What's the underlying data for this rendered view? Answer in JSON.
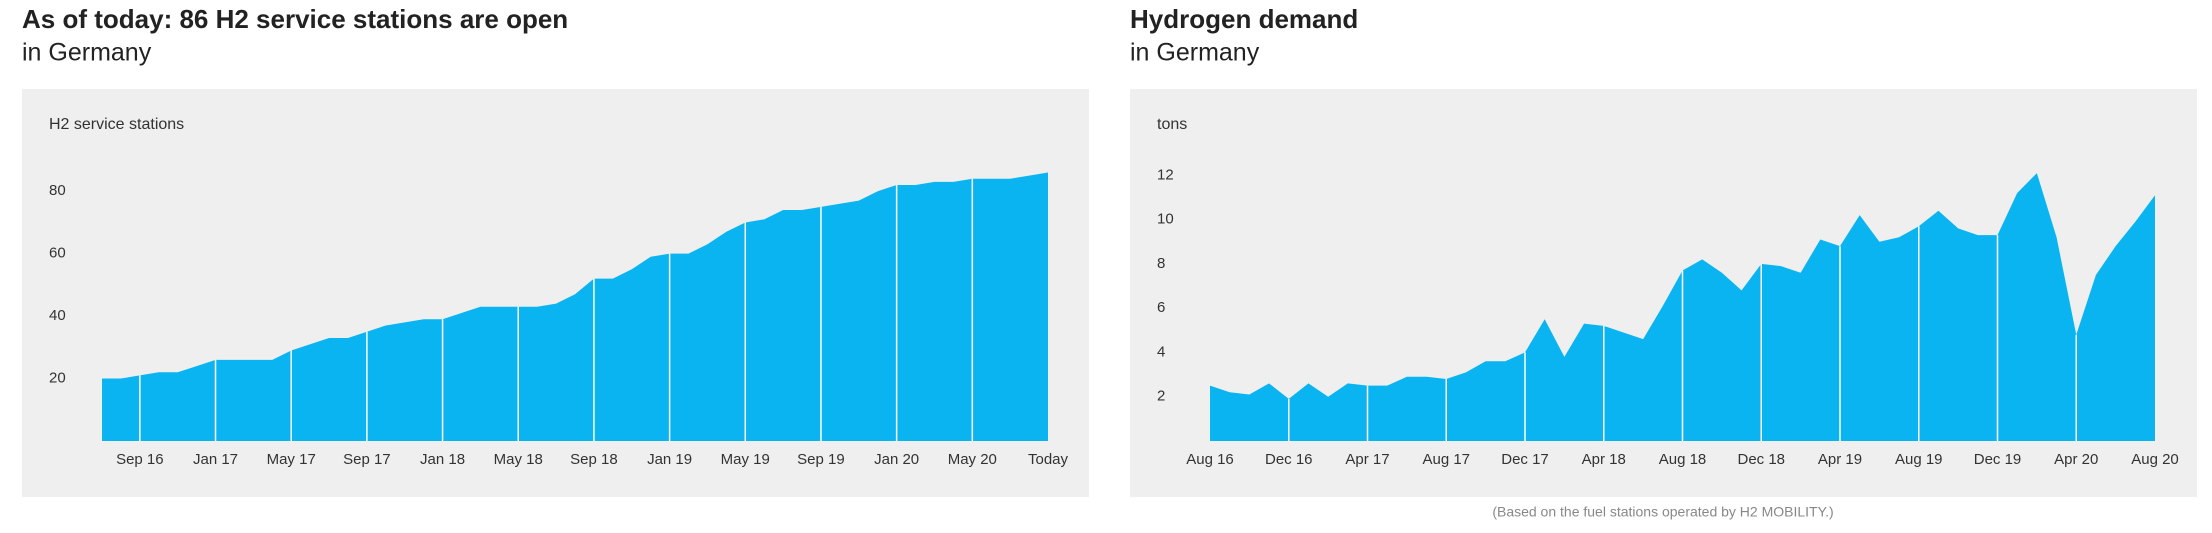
{
  "chart_data": [
    {
      "type": "area",
      "title": "As of today: 86 H2 service stations are open",
      "subtitle": "in Germany",
      "y_label": "H2 service stations",
      "color": "#0ab4f0",
      "categories": [
        null,
        null,
        "Sep 16",
        null,
        null,
        null,
        "Jan 17",
        null,
        null,
        null,
        "May 17",
        null,
        null,
        null,
        "Sep 17",
        null,
        null,
        null,
        "Jan 18",
        null,
        null,
        null,
        "May 18",
        null,
        null,
        null,
        "Sep 18",
        null,
        null,
        null,
        "Jan 19",
        null,
        null,
        null,
        "May 19",
        null,
        null,
        null,
        "Sep 19",
        null,
        null,
        null,
        "Jan 20",
        null,
        null,
        null,
        "May 20",
        null,
        null,
        null,
        "Today"
      ],
      "values": [
        20,
        20,
        21,
        22,
        22,
        24,
        26,
        26,
        26,
        26,
        29,
        31,
        33,
        33,
        35,
        37,
        38,
        39,
        39,
        41,
        43,
        43,
        43,
        43,
        44,
        47,
        52,
        52,
        55,
        59,
        60,
        60,
        63,
        67,
        70,
        71,
        74,
        74,
        75,
        76,
        77,
        80,
        82,
        82,
        83,
        83,
        84,
        84,
        84,
        85,
        86
      ],
      "ylim": [
        0,
        90
      ],
      "yticks": [
        20,
        40,
        60,
        80
      ]
    },
    {
      "type": "area",
      "title": "Hydrogen demand",
      "subtitle": "in Germany",
      "y_label": "tons",
      "color": "#0ab4f0",
      "categories": [
        "Aug 16",
        null,
        null,
        null,
        "Dec 16",
        null,
        null,
        null,
        "Apr 17",
        null,
        null,
        null,
        "Aug 17",
        null,
        null,
        null,
        "Dec 17",
        null,
        null,
        null,
        "Apr 18",
        null,
        null,
        null,
        "Aug 18",
        null,
        null,
        null,
        "Dec 18",
        null,
        null,
        null,
        "Apr 19",
        null,
        null,
        null,
        "Aug 19",
        null,
        null,
        null,
        "Dec 19",
        null,
        null,
        null,
        "Apr 20",
        null,
        null,
        null,
        "Aug 20"
      ],
      "values": [
        2.5,
        2.2,
        2.1,
        2.6,
        1.9,
        2.6,
        2.0,
        2.6,
        2.5,
        2.5,
        2.9,
        2.9,
        2.8,
        3.1,
        3.6,
        3.6,
        4.0,
        5.5,
        3.8,
        5.3,
        5.2,
        4.9,
        4.6,
        6.1,
        7.7,
        8.2,
        7.6,
        6.8,
        8.0,
        7.9,
        7.6,
        9.1,
        8.8,
        10.2,
        9.0,
        9.2,
        9.7,
        10.4,
        9.6,
        9.3,
        9.3,
        11.2,
        12.1,
        9.2,
        4.8,
        7.5,
        8.8,
        9.9,
        11.1
      ],
      "ylim": [
        0,
        14
      ],
      "yticks": [
        2,
        4,
        6,
        8,
        10,
        12
      ],
      "footnote": "(Based on the fuel stations operated by H2 MOBILITY.)"
    }
  ]
}
